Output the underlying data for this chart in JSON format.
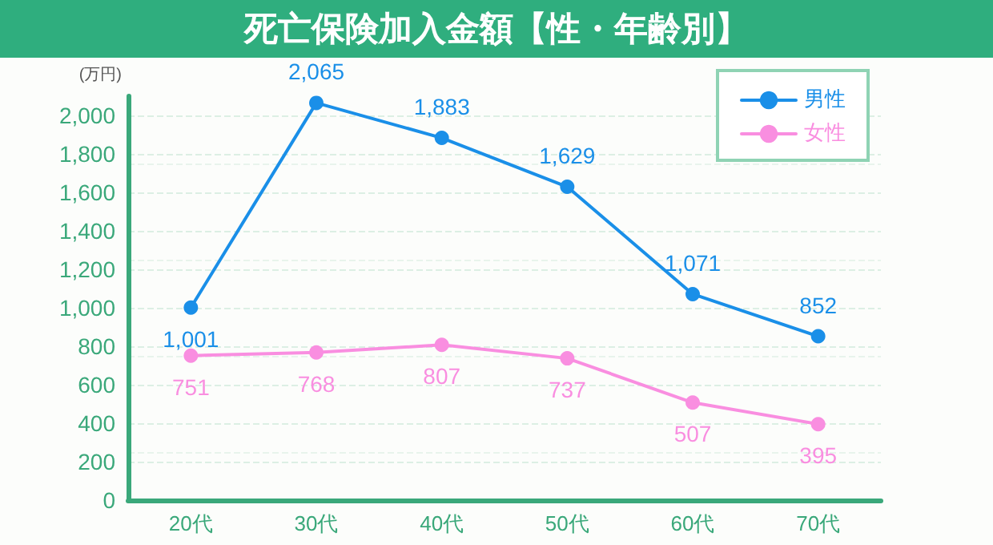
{
  "chart_data": {
    "type": "line",
    "title": "死亡保険加入金額【性・年齢別】",
    "ylabel": "(万円)",
    "categories": [
      "20代",
      "30代",
      "40代",
      "50代",
      "60代",
      "70代"
    ],
    "series": [
      {
        "name": "男性",
        "color": "#1a8fe8",
        "values": [
          1001,
          2065,
          1883,
          1629,
          1071,
          852
        ],
        "value_labels": [
          "1,001",
          "2,065",
          "1,883",
          "1,629",
          "1,071",
          "852"
        ]
      },
      {
        "name": "女性",
        "color": "#f98ee0",
        "values": [
          751,
          768,
          807,
          737,
          507,
          395
        ],
        "value_labels": [
          "751",
          "768",
          "807",
          "737",
          "507",
          "395"
        ]
      }
    ],
    "ylim": [
      0,
      2100
    ],
    "yticks": [
      0,
      200,
      400,
      600,
      800,
      {
        "value": 1000,
        "label": "1,000"
      },
      {
        "value": 1200,
        "label": "1,200"
      },
      {
        "value": 1400,
        "label": "1,400"
      },
      {
        "value": 1600,
        "label": "1,600"
      },
      {
        "value": 1800,
        "label": "1,800"
      },
      {
        "value": 2000,
        "label": "2,000"
      }
    ],
    "grid": "y",
    "legend": "top right",
    "marker": "circle",
    "line_style": "solid"
  }
}
